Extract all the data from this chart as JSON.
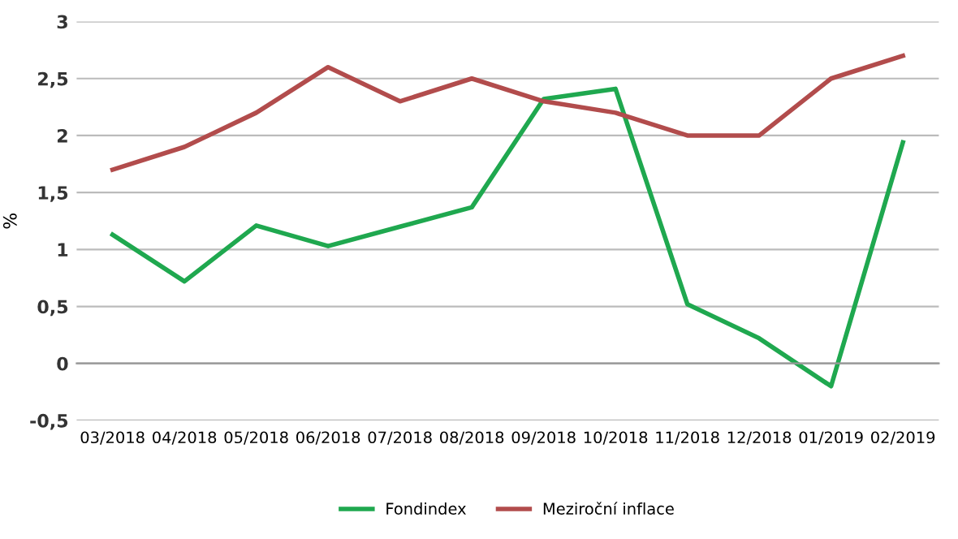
{
  "chart_data": {
    "type": "line",
    "ylabel": "%",
    "categories": [
      "03/2018",
      "04/2018",
      "05/2018",
      "06/2018",
      "07/2018",
      "08/2018",
      "09/2018",
      "10/2018",
      "11/2018",
      "12/2018",
      "01/2019",
      "02/2019"
    ],
    "series": [
      {
        "name": "Fondindex",
        "color": "#1fa84f",
        "values": [
          1.13,
          0.72,
          1.21,
          1.03,
          1.2,
          1.37,
          2.32,
          2.41,
          0.52,
          0.22,
          -0.2,
          1.94
        ]
      },
      {
        "name": "Meziroční inflace",
        "color": "#b24c4c",
        "values": [
          1.7,
          1.9,
          2.2,
          2.6,
          2.3,
          2.5,
          2.3,
          2.2,
          2.0,
          2.0,
          2.5,
          2.7
        ]
      }
    ],
    "ylim": [
      -0.5,
      3
    ],
    "yticks": [
      {
        "value": -0.5,
        "label": "-0,5"
      },
      0,
      {
        "value": 0.5,
        "label": "0,5"
      },
      1,
      {
        "value": 1.5,
        "label": "1,5"
      },
      2,
      {
        "value": 2.5,
        "label": "2,5"
      },
      3
    ],
    "grid": "y",
    "legend": "bottom",
    "marker": "none",
    "line_style": "solid"
  }
}
